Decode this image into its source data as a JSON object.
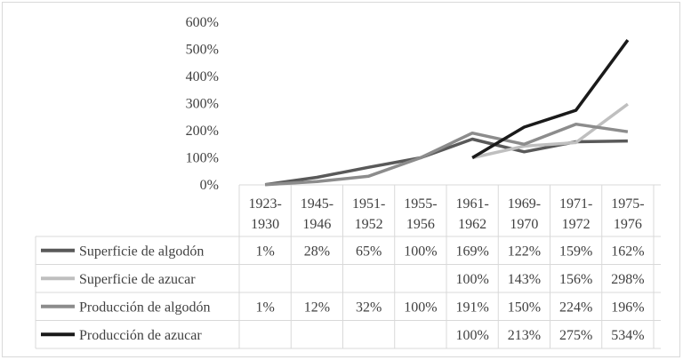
{
  "chart_data": {
    "type": "line",
    "title": "",
    "xlabel": "",
    "ylabel": "",
    "ylim": [
      0,
      600
    ],
    "y_ticks": [
      "0%",
      "100%",
      "200%",
      "300%",
      "400%",
      "500%",
      "600%"
    ],
    "grid": false,
    "legend": "data-table",
    "categories": [
      [
        "1923-",
        "1930"
      ],
      [
        "1945-",
        "1946"
      ],
      [
        "1951-",
        "1952"
      ],
      [
        "1955-",
        "1956"
      ],
      [
        "1961-",
        "1962"
      ],
      [
        "1969-",
        "1970"
      ],
      [
        "1971-",
        "1972"
      ],
      [
        "1975-",
        "1976"
      ]
    ],
    "series": [
      {
        "name": "Superficie de algodón",
        "color": "#595959",
        "width": 3.5,
        "values": [
          1,
          28,
          65,
          100,
          169,
          122,
          159,
          162
        ],
        "labels": [
          "1%",
          "28%",
          "65%",
          "100%",
          "169%",
          "122%",
          "159%",
          "162%"
        ]
      },
      {
        "name": "Superficie de azucar",
        "color": "#bfbfbf",
        "width": 3.5,
        "values": [
          null,
          null,
          null,
          null,
          100,
          143,
          156,
          298
        ],
        "labels": [
          "",
          "",
          "",
          "",
          "100%",
          "143%",
          "156%",
          "298%"
        ]
      },
      {
        "name": "Producción de algodón",
        "color": "#8c8c8c",
        "width": 3.5,
        "values": [
          1,
          12,
          32,
          100,
          191,
          150,
          224,
          196
        ],
        "labels": [
          "1%",
          "12%",
          "32%",
          "100%",
          "191%",
          "150%",
          "224%",
          "196%"
        ]
      },
      {
        "name": "Producción de azucar",
        "color": "#1a1a1a",
        "width": 3.5,
        "values": [
          null,
          null,
          null,
          null,
          100,
          213,
          275,
          534
        ],
        "labels": [
          "",
          "",
          "",
          "",
          "100%",
          "213%",
          "275%",
          "534%"
        ]
      }
    ]
  }
}
